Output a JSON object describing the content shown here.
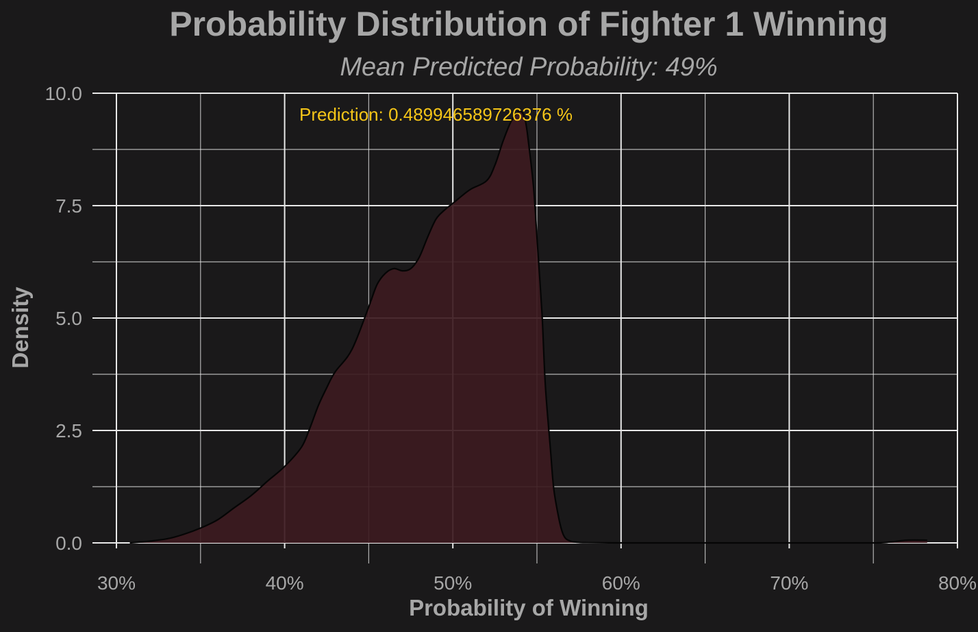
{
  "chart_data": {
    "type": "area",
    "title": "Probability Distribution of Fighter 1 Winning",
    "subtitle": "Mean Predicted Probability: 49%",
    "xlabel": "Probability of Winning",
    "ylabel": "Density",
    "xlim": [
      0.3,
      0.8
    ],
    "ylim": [
      0.0,
      10.0
    ],
    "x_ticks": [
      0.3,
      0.4,
      0.5,
      0.6,
      0.7,
      0.8
    ],
    "x_tick_labels": [
      "30%",
      "40%",
      "50%",
      "60%",
      "70%",
      "80%"
    ],
    "y_ticks": [
      0.0,
      2.5,
      5.0,
      7.5,
      10.0
    ],
    "y_tick_labels": [
      "0.0",
      "2.5",
      "5.0",
      "7.5",
      "10.0"
    ],
    "grid": true,
    "annotation": {
      "text": "Prediction: 0.489946589726376 %",
      "x": 0.489946589726376,
      "y": 9.5,
      "color": "#f5c518"
    },
    "series": [
      {
        "x": [
          0.308,
          0.32,
          0.33,
          0.34,
          0.35,
          0.36,
          0.37,
          0.38,
          0.39,
          0.4,
          0.41,
          0.415,
          0.42,
          0.425,
          0.43,
          0.44,
          0.45,
          0.455,
          0.46,
          0.465,
          0.47,
          0.475,
          0.48,
          0.485,
          0.49,
          0.495,
          0.5,
          0.51,
          0.52,
          0.525,
          0.53,
          0.535,
          0.54,
          0.543,
          0.545,
          0.548,
          0.55,
          0.553,
          0.555,
          0.558,
          0.56,
          0.563,
          0.565,
          0.567,
          0.57,
          0.575,
          0.58,
          0.6,
          0.65,
          0.7,
          0.75,
          0.76,
          0.77,
          0.782
        ],
        "y": [
          0.0,
          0.04,
          0.09,
          0.19,
          0.33,
          0.51,
          0.78,
          1.05,
          1.38,
          1.7,
          2.13,
          2.55,
          3.05,
          3.45,
          3.8,
          4.3,
          5.25,
          5.75,
          6.0,
          6.1,
          6.05,
          6.1,
          6.35,
          6.8,
          7.2,
          7.4,
          7.55,
          7.85,
          8.05,
          8.4,
          8.95,
          9.4,
          9.6,
          9.4,
          8.9,
          7.9,
          6.8,
          5.1,
          3.5,
          2.1,
          1.2,
          0.55,
          0.25,
          0.1,
          0.04,
          0.01,
          0.005,
          0.0,
          0.0,
          0.0,
          0.0,
          0.02,
          0.06,
          0.06
        ]
      }
    ]
  },
  "colors": {
    "background": "#1a191a",
    "grid": "#e8e8e8",
    "text": "#a7a7a7",
    "fill": "#3c1a20",
    "line": "#050505",
    "annotation": "#f5c518"
  }
}
